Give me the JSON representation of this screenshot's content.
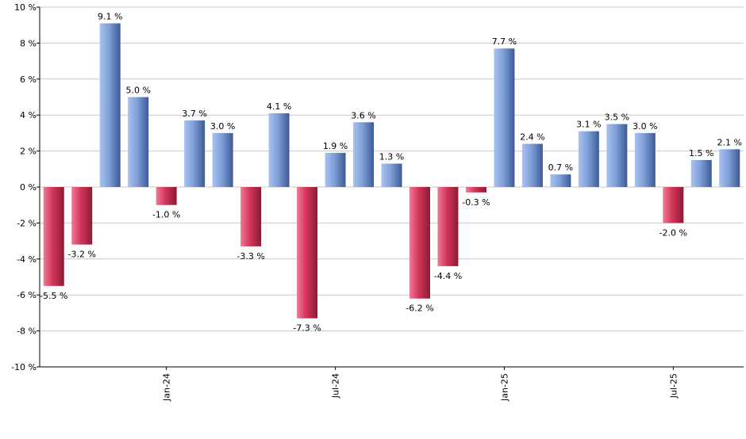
{
  "chart_data": {
    "type": "bar",
    "title": "",
    "xlabel": "",
    "ylabel": "",
    "ylim": [
      -10,
      10
    ],
    "y_tick_labels": [
      "-10 %",
      "-8 %",
      "-6 %",
      "-4 %",
      "-2 %",
      "0 %",
      "2 %",
      "4 %",
      "6 %",
      "8 %",
      "10 %"
    ],
    "x_tick_labels": [
      {
        "label": "Jan-24",
        "index": 4.5
      },
      {
        "label": "Jul-24",
        "index": 10.5
      },
      {
        "label": "Jan-25",
        "index": 16.5
      },
      {
        "label": "Jul-25",
        "index": 22.5
      }
    ],
    "values": [
      -5.5,
      -3.2,
      9.1,
      5.0,
      -1.0,
      3.7,
      3.0,
      -3.3,
      4.1,
      -7.3,
      1.9,
      3.6,
      1.3,
      -6.2,
      -4.4,
      -0.3,
      7.7,
      2.4,
      0.7,
      3.1,
      3.5,
      3.0,
      -2.0,
      1.5,
      2.1
    ],
    "data_labels": [
      "-5.5 %",
      "-3.2 %",
      "9.1 %",
      "5.0 %",
      "-1.0 %",
      "3.7 %",
      "3.0 %",
      "-3.3 %",
      "4.1 %",
      "-7.3 %",
      "1.9 %",
      "3.6 %",
      "1.3 %",
      "-6.2 %",
      "-4.4 %",
      "-0.3 %",
      "7.7 %",
      "2.4 %",
      "0.7 %",
      "3.1 %",
      "3.5 %",
      "3.0 %",
      "-2.0 %",
      "1.5 %",
      "2.1 %"
    ],
    "grid": true,
    "colors": {
      "positive_light": "#a9c2f0",
      "positive_dark": "#3d5a96",
      "negative_light": "#f07a94",
      "negative_dark": "#8c1b34",
      "grid": "#c8c8c8",
      "axis": "#000000"
    }
  }
}
